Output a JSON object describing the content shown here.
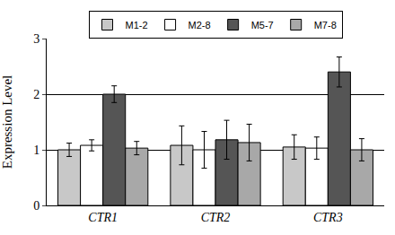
{
  "chart_data": {
    "type": "bar",
    "y_label": "Expression Level",
    "categories": [
      "CTR1",
      "CTR2",
      "CTR3"
    ],
    "series": [
      {
        "name": "M1-2",
        "color": "#c8c8c8",
        "values": [
          1.0,
          1.08,
          1.05
        ],
        "error": [
          0.12,
          0.35,
          0.22
        ]
      },
      {
        "name": "M2-8",
        "color": "#ffffff",
        "values": [
          1.08,
          1.0,
          1.03
        ],
        "error": [
          0.1,
          0.33,
          0.2
        ]
      },
      {
        "name": "M5-7",
        "color": "#555555",
        "values": [
          2.0,
          1.18,
          2.4
        ],
        "error": [
          0.15,
          0.35,
          0.27
        ]
      },
      {
        "name": "M7-8",
        "color": "#a8a8a8",
        "values": [
          1.03,
          1.13,
          1.0
        ],
        "error": [
          0.12,
          0.33,
          0.2
        ]
      }
    ],
    "ylim": [
      0,
      3
    ],
    "yticks": [
      0,
      1,
      2,
      3
    ],
    "grid": true,
    "legend": "top"
  }
}
